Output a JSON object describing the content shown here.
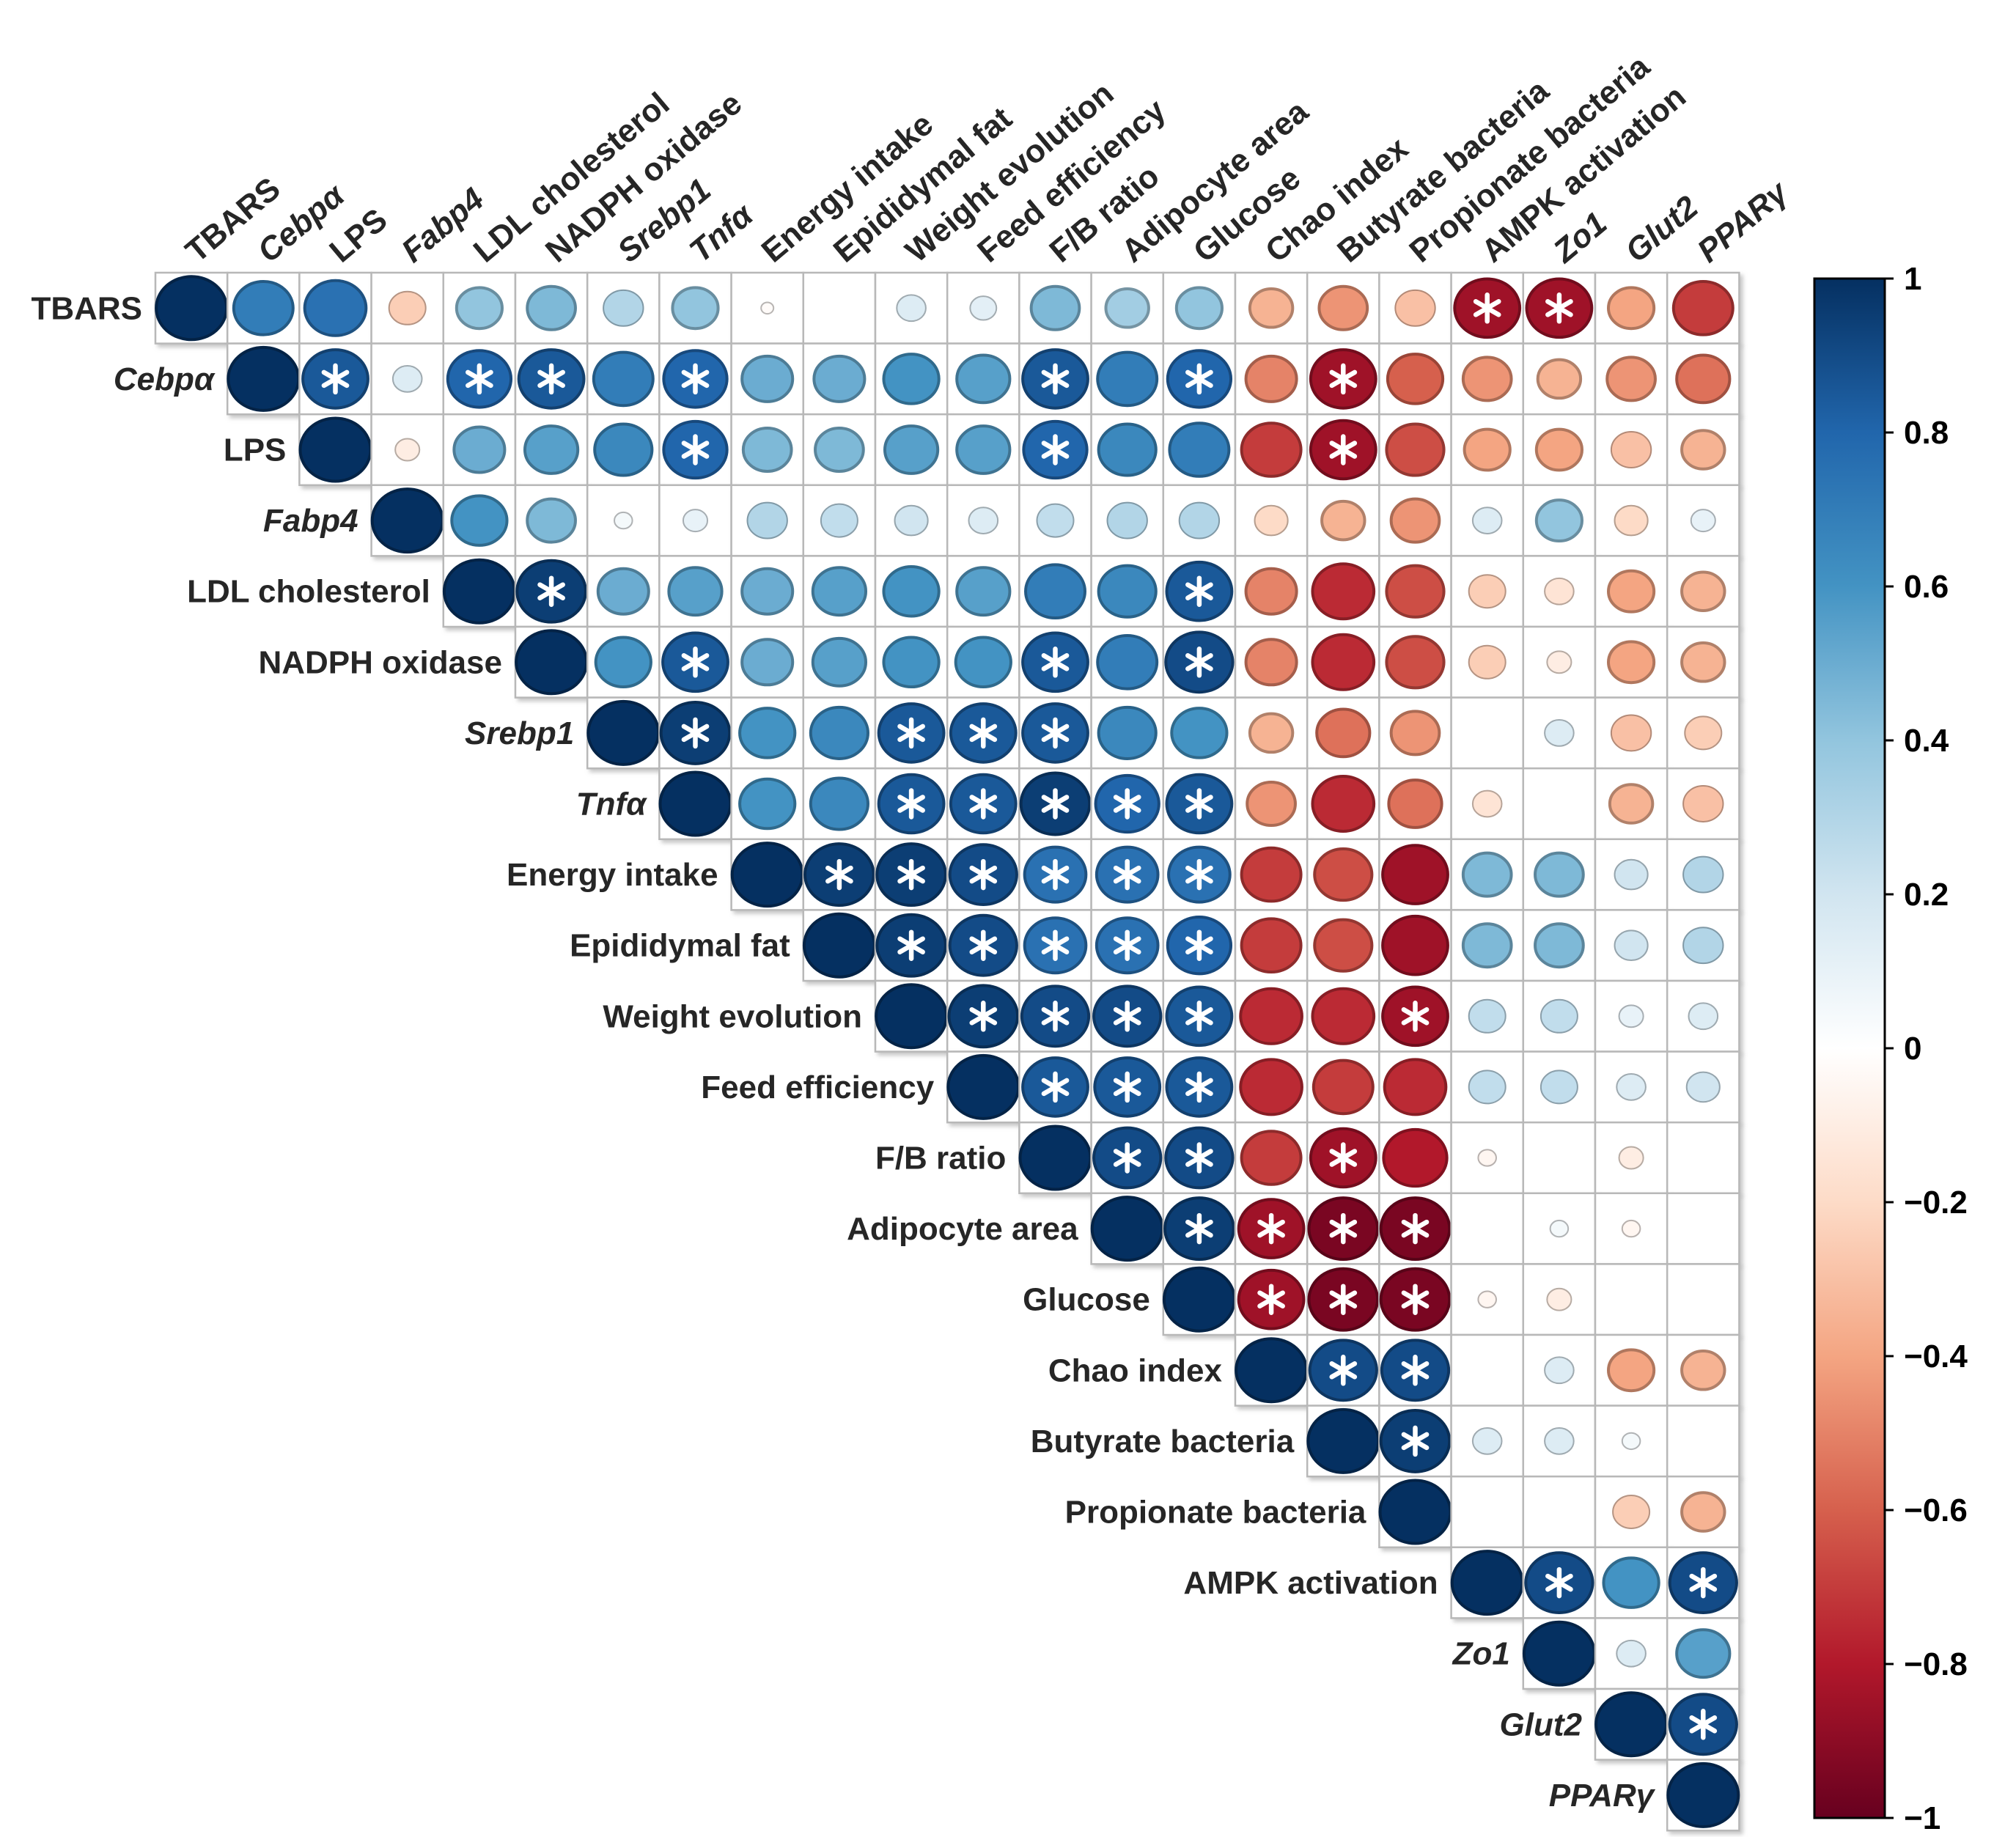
{
  "chart_data": {
    "type": "heatmap",
    "subtype": "correlation-matrix-upper-triangle",
    "title": "",
    "variables": [
      {
        "label": "TBARS",
        "italic": false
      },
      {
        "label": "Cebpα",
        "italic": true
      },
      {
        "label": "LPS",
        "italic": false
      },
      {
        "label": "Fabp4",
        "italic": true
      },
      {
        "label": "LDL cholesterol",
        "italic": false
      },
      {
        "label": "NADPH oxidase",
        "italic": false
      },
      {
        "label": "Srebp1",
        "italic": true
      },
      {
        "label": "Tnfα",
        "italic": true
      },
      {
        "label": "Energy intake",
        "italic": false
      },
      {
        "label": "Epididymal fat",
        "italic": false
      },
      {
        "label": "Weight evolution",
        "italic": false
      },
      {
        "label": "Feed efficiency",
        "italic": false
      },
      {
        "label": "F/B ratio",
        "italic": false
      },
      {
        "label": "Adipocyte area",
        "italic": false
      },
      {
        "label": "Glucose",
        "italic": false
      },
      {
        "label": "Chao index",
        "italic": false
      },
      {
        "label": "Butyrate bacteria",
        "italic": false
      },
      {
        "label": "Propionate bacteria",
        "italic": false
      },
      {
        "label": "AMPK activation",
        "italic": false
      },
      {
        "label": "Zo1",
        "italic": true
      },
      {
        "label": "Glut2",
        "italic": true
      },
      {
        "label": "PPARγ",
        "italic": true
      }
    ],
    "matrix_upper": [
      [
        1.0,
        0.7,
        0.75,
        -0.25,
        0.4,
        0.45,
        0.3,
        0.4,
        -0.02,
        0.0,
        0.15,
        0.12,
        0.45,
        0.35,
        0.4,
        -0.35,
        -0.45,
        -0.3,
        -0.85,
        -0.85,
        -0.4,
        -0.7
      ],
      [
        1.0,
        0.85,
        0.15,
        0.8,
        0.85,
        0.7,
        0.8,
        0.5,
        0.5,
        0.6,
        0.55,
        0.85,
        0.7,
        0.8,
        -0.5,
        -0.85,
        -0.6,
        -0.45,
        -0.35,
        -0.45,
        -0.55
      ],
      [
        1.0,
        -0.1,
        0.5,
        0.55,
        0.65,
        0.8,
        0.45,
        0.45,
        0.55,
        0.55,
        0.8,
        0.65,
        0.7,
        -0.7,
        -0.85,
        -0.65,
        -0.4,
        -0.4,
        -0.3,
        -0.35
      ],
      [
        1.0,
        0.6,
        0.45,
        0.05,
        0.1,
        0.3,
        0.25,
        0.2,
        0.15,
        0.25,
        0.3,
        0.3,
        -0.2,
        -0.35,
        -0.45,
        0.15,
        0.4,
        -0.2,
        0.1
      ],
      [
        1.0,
        0.95,
        0.5,
        0.55,
        0.5,
        0.55,
        0.6,
        0.55,
        0.7,
        0.65,
        0.85,
        -0.5,
        -0.75,
        -0.65,
        -0.25,
        -0.15,
        -0.4,
        -0.35
      ],
      [
        1.0,
        0.6,
        0.85,
        0.5,
        0.55,
        0.6,
        0.6,
        0.85,
        0.7,
        0.9,
        -0.5,
        -0.75,
        -0.65,
        -0.25,
        -0.1,
        -0.4,
        -0.35
      ],
      [
        1.0,
        0.95,
        0.6,
        0.65,
        0.85,
        0.85,
        0.85,
        0.65,
        0.6,
        -0.35,
        -0.55,
        -0.45,
        0.0,
        0.15,
        -0.3,
        -0.25
      ],
      [
        1.0,
        0.6,
        0.65,
        0.85,
        0.85,
        0.95,
        0.8,
        0.85,
        -0.45,
        -0.75,
        -0.55,
        -0.15,
        0.0,
        -0.35,
        -0.3
      ],
      [
        1.0,
        0.95,
        0.95,
        0.9,
        0.75,
        0.75,
        0.75,
        -0.7,
        -0.65,
        -0.85,
        0.45,
        0.45,
        0.2,
        0.3
      ],
      [
        1.0,
        0.95,
        0.9,
        0.75,
        0.75,
        0.8,
        -0.7,
        -0.65,
        -0.85,
        0.45,
        0.45,
        0.2,
        0.3
      ],
      [
        1.0,
        0.95,
        0.9,
        0.9,
        0.85,
        -0.75,
        -0.75,
        -0.85,
        0.25,
        0.25,
        0.1,
        0.15
      ],
      [
        1.0,
        0.85,
        0.85,
        0.85,
        -0.75,
        -0.7,
        -0.75,
        0.25,
        0.25,
        0.15,
        0.2
      ],
      [
        1.0,
        0.9,
        0.9,
        -0.7,
        -0.85,
        -0.8,
        -0.05,
        0.0,
        -0.1,
        0.0
      ],
      [
        1.0,
        0.95,
        -0.85,
        -0.95,
        -0.95,
        0.0,
        0.05,
        -0.05,
        0.0
      ],
      [
        1.0,
        -0.85,
        -0.95,
        -0.95,
        -0.05,
        -0.1,
        0.0,
        0.0
      ],
      [
        1.0,
        0.9,
        0.9,
        0.0,
        0.15,
        -0.4,
        -0.35
      ],
      [
        1.0,
        0.95,
        0.15,
        0.15,
        0.05,
        0.0
      ],
      [
        1.0,
        0.0,
        0.0,
        -0.25,
        -0.35
      ],
      [
        1.0,
        0.9,
        0.6,
        0.9
      ],
      [
        1.0,
        0.15,
        0.55
      ],
      [
        1.0,
        0.9
      ],
      [
        1.0
      ]
    ],
    "significant_pairs": [
      [
        0,
        18
      ],
      [
        0,
        19
      ],
      [
        1,
        2
      ],
      [
        1,
        4
      ],
      [
        1,
        5
      ],
      [
        1,
        7
      ],
      [
        1,
        12
      ],
      [
        1,
        14
      ],
      [
        1,
        16
      ],
      [
        2,
        7
      ],
      [
        2,
        12
      ],
      [
        2,
        16
      ],
      [
        4,
        5
      ],
      [
        4,
        14
      ],
      [
        5,
        7
      ],
      [
        5,
        12
      ],
      [
        5,
        14
      ],
      [
        6,
        7
      ],
      [
        6,
        10
      ],
      [
        6,
        11
      ],
      [
        6,
        12
      ],
      [
        7,
        10
      ],
      [
        7,
        11
      ],
      [
        7,
        12
      ],
      [
        7,
        13
      ],
      [
        7,
        14
      ],
      [
        8,
        9
      ],
      [
        8,
        10
      ],
      [
        8,
        11
      ],
      [
        8,
        12
      ],
      [
        8,
        13
      ],
      [
        8,
        14
      ],
      [
        9,
        10
      ],
      [
        9,
        11
      ],
      [
        9,
        12
      ],
      [
        9,
        13
      ],
      [
        9,
        14
      ],
      [
        10,
        11
      ],
      [
        10,
        12
      ],
      [
        10,
        13
      ],
      [
        10,
        14
      ],
      [
        10,
        17
      ],
      [
        11,
        12
      ],
      [
        11,
        13
      ],
      [
        11,
        14
      ],
      [
        12,
        13
      ],
      [
        12,
        14
      ],
      [
        12,
        16
      ],
      [
        13,
        14
      ],
      [
        13,
        15
      ],
      [
        13,
        16
      ],
      [
        13,
        17
      ],
      [
        14,
        15
      ],
      [
        14,
        16
      ],
      [
        14,
        17
      ],
      [
        15,
        16
      ],
      [
        15,
        17
      ],
      [
        16,
        17
      ],
      [
        18,
        19
      ],
      [
        18,
        21
      ],
      [
        20,
        21
      ]
    ],
    "significance_marker": "*",
    "colorbar": {
      "range": [
        -1,
        1
      ],
      "ticks": [
        1,
        0.8,
        0.6,
        0.4,
        0.2,
        0,
        -0.2,
        -0.4,
        -0.6,
        -0.8,
        -1
      ],
      "tick_labels": [
        "1",
        "0.8",
        "0.6",
        "0.4",
        "0.2",
        "0",
        "−0.2",
        "−0.4",
        "−0.6",
        "−0.8",
        "−1"
      ],
      "position": "right",
      "stops": [
        {
          "value": -1,
          "color": "#67001f"
        },
        {
          "value": -0.8,
          "color": "#b2182b"
        },
        {
          "value": -0.6,
          "color": "#d6604d"
        },
        {
          "value": -0.4,
          "color": "#f4a582"
        },
        {
          "value": -0.2,
          "color": "#fddbc7"
        },
        {
          "value": 0,
          "color": "#ffffff"
        },
        {
          "value": 0.2,
          "color": "#d1e5f0"
        },
        {
          "value": 0.4,
          "color": "#92c5de"
        },
        {
          "value": 0.6,
          "color": "#4393c3"
        },
        {
          "value": 0.8,
          "color": "#2166ac"
        },
        {
          "value": 1,
          "color": "#053061"
        }
      ]
    }
  }
}
